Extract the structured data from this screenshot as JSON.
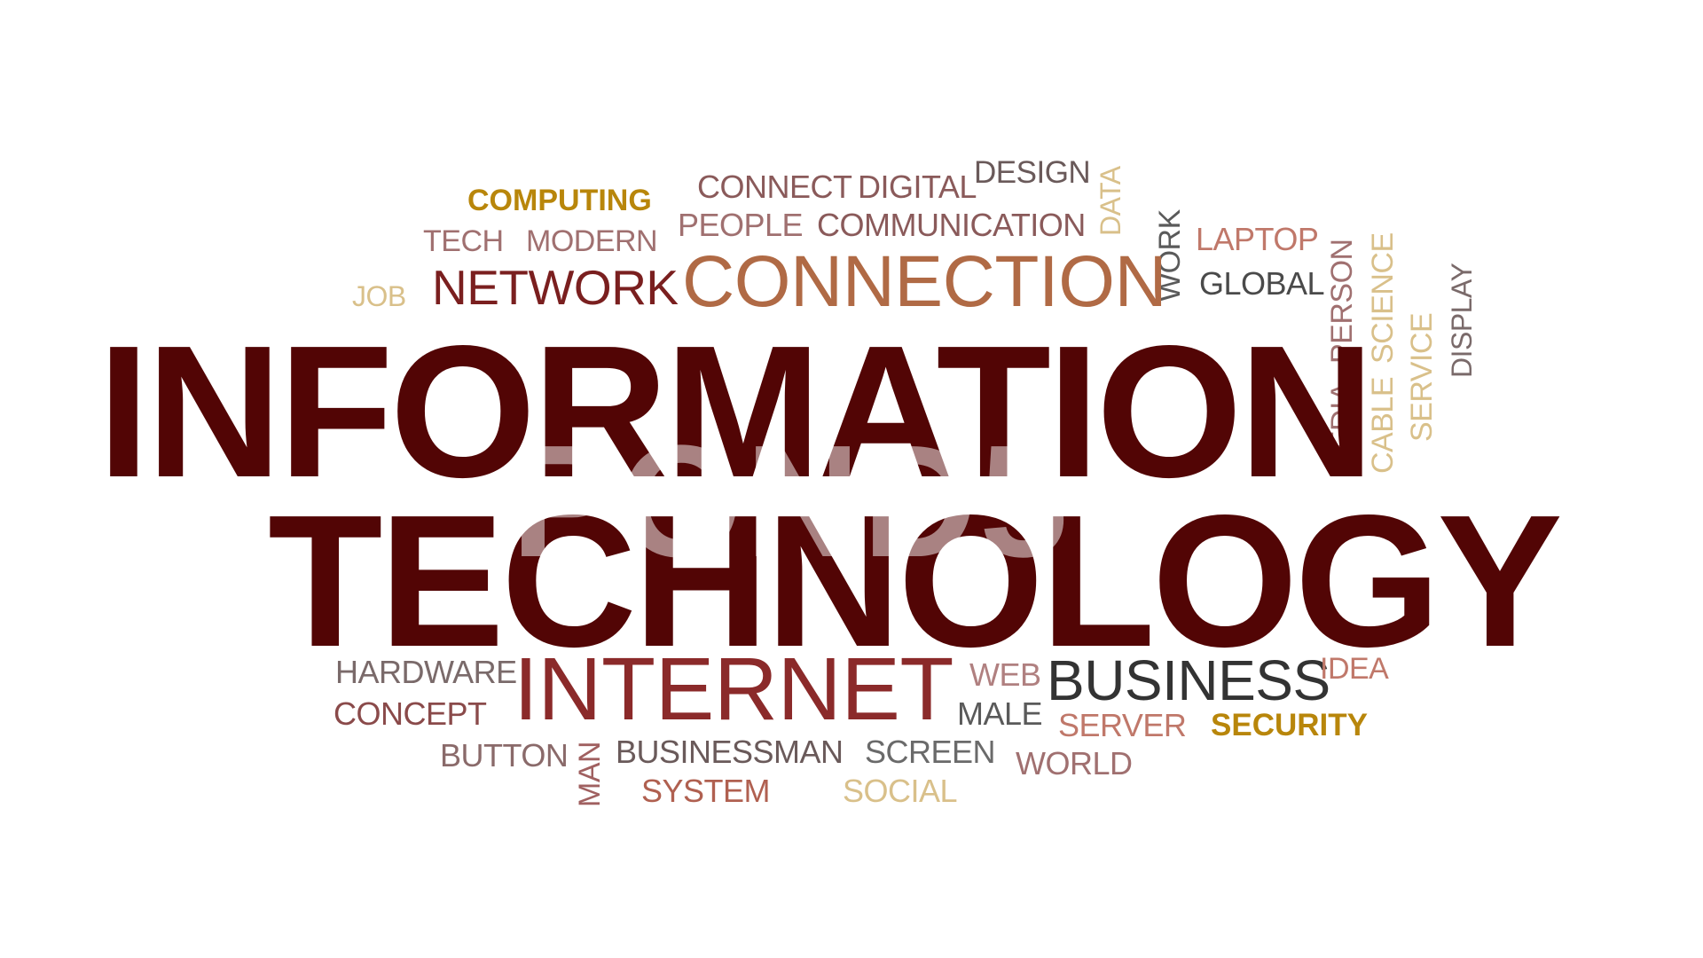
{
  "title_line_1": "INFORMATION",
  "title_line_2": "TECHNOLOGY",
  "watermark": "POND5",
  "words": {
    "computing": "COMPUTING",
    "connect": "CONNECT",
    "digital": "DIGITAL",
    "design": "DESIGN",
    "data": "DATA",
    "tech": "TECH",
    "modern": "MODERN",
    "people": "PEOPLE",
    "communication": "COMMUNICATION",
    "work": "WORK",
    "laptop": "LAPTOP",
    "job": "JOB",
    "network": "NETWORK",
    "connection": "CONNECTION",
    "global": "GLOBAL",
    "person": "PERSON",
    "cable": "CABLE",
    "science": "SCIENCE",
    "display": "DISPLAY",
    "service": "SERVICE",
    "media": "MEDIA",
    "hardware": "HARDWARE",
    "internet": "INTERNET",
    "web": "WEB",
    "business": "BUSINESS",
    "idea": "IDEA",
    "concept": "CONCEPT",
    "male": "MALE",
    "server": "SERVER",
    "security": "SECURITY",
    "button": "BUTTON",
    "man": "MAN",
    "businessman": "BUSINESSMAN",
    "screen": "SCREEN",
    "world": "WORLD",
    "system": "SYSTEM",
    "social": "SOCIAL"
  },
  "colors": {
    "headline": "#520505",
    "gold": "#b8860b",
    "tan": "#d9c08a",
    "brown": "#a0522d",
    "maroon": "#7a1f1f",
    "gray": "#4a4a4a",
    "rose": "#c0786a"
  }
}
